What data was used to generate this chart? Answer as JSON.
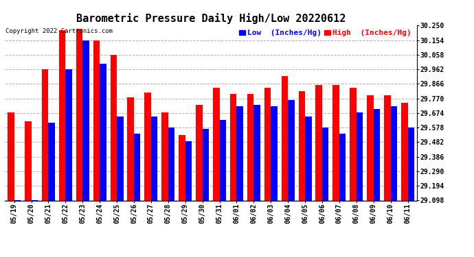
{
  "title": "Barometric Pressure Daily High/Low 20220612",
  "copyright": "Copyright 2022 Cartronics.com",
  "legend_low": "Low  (Inches/Hg)",
  "legend_high": "High  (Inches/Hg)",
  "dates": [
    "05/19",
    "05/20",
    "05/21",
    "05/22",
    "05/23",
    "05/24",
    "05/25",
    "05/26",
    "05/27",
    "05/28",
    "05/29",
    "05/30",
    "05/31",
    "06/01",
    "06/02",
    "06/03",
    "06/04",
    "06/05",
    "06/06",
    "06/07",
    "06/08",
    "06/09",
    "06/10",
    "06/11"
  ],
  "high_values": [
    29.68,
    29.62,
    29.962,
    30.22,
    30.23,
    30.154,
    30.058,
    29.78,
    29.81,
    29.68,
    29.53,
    29.73,
    29.84,
    29.8,
    29.8,
    29.84,
    29.92,
    29.82,
    29.858,
    29.858,
    29.84,
    29.79,
    29.79,
    29.74
  ],
  "low_values": [
    29.098,
    29.098,
    29.61,
    29.962,
    30.154,
    30.0,
    29.65,
    29.54,
    29.65,
    29.58,
    29.49,
    29.57,
    29.63,
    29.72,
    29.73,
    29.72,
    29.76,
    29.65,
    29.58,
    29.54,
    29.68,
    29.7,
    29.72,
    29.578
  ],
  "ymin": 29.098,
  "ymax": 30.25,
  "yticks": [
    29.098,
    29.194,
    29.29,
    29.386,
    29.482,
    29.578,
    29.674,
    29.77,
    29.866,
    29.962,
    30.058,
    30.154,
    30.25
  ],
  "bar_width": 0.38,
  "high_color": "#ff0000",
  "low_color": "#0000ff",
  "bg_color": "#ffffff",
  "grid_color": "#b0b0b0",
  "title_fontsize": 11,
  "tick_fontsize": 7,
  "legend_fontsize": 8,
  "copyright_fontsize": 6.5
}
